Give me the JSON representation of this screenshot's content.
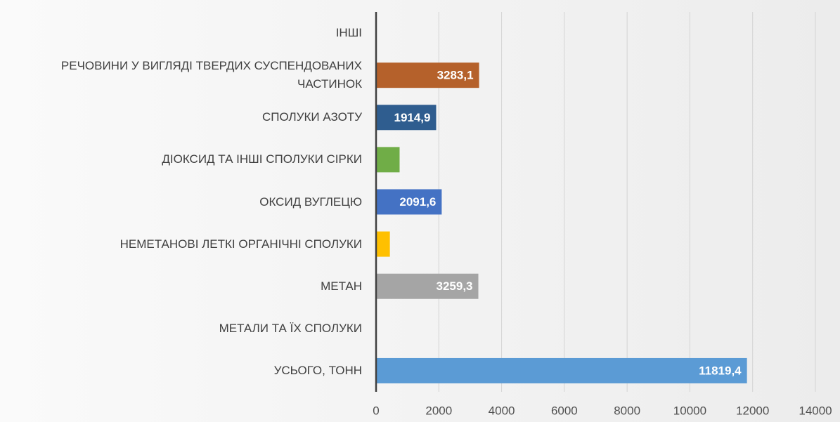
{
  "chart_data": {
    "type": "bar",
    "orientation": "horizontal",
    "categories": [
      "ІНШІ",
      "РЕЧОВИНИ У ВИГЛЯДІ ТВЕРДИХ СУСПЕНДОВАНИХ ЧАСТИНОК",
      "СПОЛУКИ АЗОТУ",
      "ДІОКСИД ТА ІНШІ СПОЛУКИ СІРКИ",
      "ОКСИД ВУГЛЕЦЮ",
      "НЕМЕТАНОВІ ЛЕТКІ ОРГАНІЧНІ СПОЛУКИ",
      "МЕТАН",
      "МЕТАЛИ ТА ЇХ СПОЛУКИ",
      "УСЬОГО, ТОНН"
    ],
    "values": [
      0,
      3283.1,
      1914.9,
      750,
      2091.6,
      440,
      3259.3,
      0,
      11819.4
    ],
    "value_labels": [
      null,
      "3283,1",
      "1914,9",
      null,
      "2091,6",
      null,
      "3259,3",
      null,
      "11819,4"
    ],
    "colors": [
      "#5b9bd5",
      "#b5612b",
      "#2f5d8f",
      "#70ad47",
      "#4472c4",
      "#ffc000",
      "#a5a5a5",
      "#5b9bd5",
      "#5b9bd5"
    ],
    "xlim": [
      0,
      14000
    ],
    "xticks": [
      0,
      2000,
      4000,
      6000,
      8000,
      10000,
      12000,
      14000
    ],
    "grid": true
  }
}
